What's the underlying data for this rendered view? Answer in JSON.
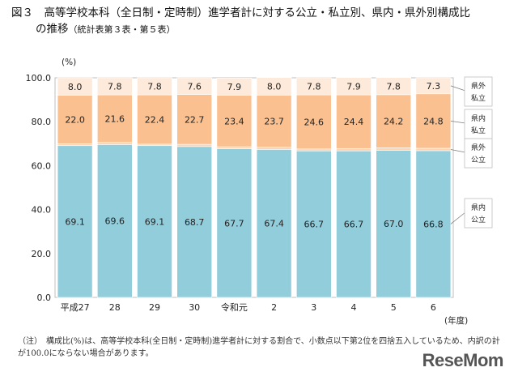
{
  "header": {
    "title_line1": "図３　高等学校本科（全日制・定時制）進学者計に対する公立・私立別、県内・県外別構成比",
    "title_line2": "の推移",
    "title_suffix": "（統計表第３表・第５表）"
  },
  "chart_data": {
    "type": "bar",
    "stacked": true,
    "unit_label": "(%)",
    "xlabel": "(年度)",
    "ylim": [
      0,
      100
    ],
    "yticks": [
      "0.0",
      "20.0",
      "40.0",
      "60.0",
      "80.0",
      "100.0"
    ],
    "categories": [
      "平成27",
      "28",
      "29",
      "30",
      "令和元",
      "2",
      "3",
      "4",
      "5",
      "6"
    ],
    "series": [
      {
        "name": "県内公立",
        "label_lines": [
          "県内",
          "公立"
        ],
        "color": "#92cddc",
        "values": [
          69.1,
          69.6,
          69.1,
          68.7,
          67.7,
          67.4,
          66.7,
          66.7,
          67.0,
          66.8
        ],
        "labels": [
          "69.1",
          "69.6",
          "69.1",
          "68.7",
          "67.7",
          "67.4",
          "66.7",
          "66.7",
          "67.0",
          "66.8"
        ]
      },
      {
        "name": "県外公立",
        "label_lines": [
          "県外",
          "公立"
        ],
        "color": "#fcd5b5",
        "values": [
          0.9,
          1.0,
          0.7,
          1.0,
          0.9,
          1.0,
          0.9,
          1.1,
          1.1,
          1.1
        ],
        "labels": [
          "0.9",
          "1.0",
          "0.7",
          "1.0",
          "0.9",
          "1.0",
          "0.9",
          "1.1",
          "1.1",
          "1.1"
        ]
      },
      {
        "name": "県内私立",
        "label_lines": [
          "県内",
          "私立"
        ],
        "color": "#fac090",
        "values": [
          22.0,
          21.6,
          22.4,
          22.7,
          23.4,
          23.7,
          24.6,
          24.4,
          24.2,
          24.8
        ],
        "labels": [
          "22.0",
          "21.6",
          "22.4",
          "22.7",
          "23.4",
          "23.7",
          "24.6",
          "24.4",
          "24.2",
          "24.8"
        ]
      },
      {
        "name": "県外私立",
        "label_lines": [
          "県外",
          "私立"
        ],
        "color": "#fdeada",
        "values": [
          8.0,
          7.8,
          7.8,
          7.6,
          7.9,
          8.0,
          7.8,
          7.9,
          7.8,
          7.3
        ],
        "labels": [
          "8.0",
          "7.8",
          "7.8",
          "7.6",
          "7.9",
          "8.0",
          "7.8",
          "7.9",
          "7.8",
          "7.3"
        ]
      }
    ]
  },
  "footnote": "（注）　構成比(%)は、高等学校本科(全日制・定時制)進学者計に対する割合で、小数点以下第2位を四捨五入しているため、内訳の計が100.0にならない場合があります。",
  "logo": {
    "text": "ReseMom"
  }
}
